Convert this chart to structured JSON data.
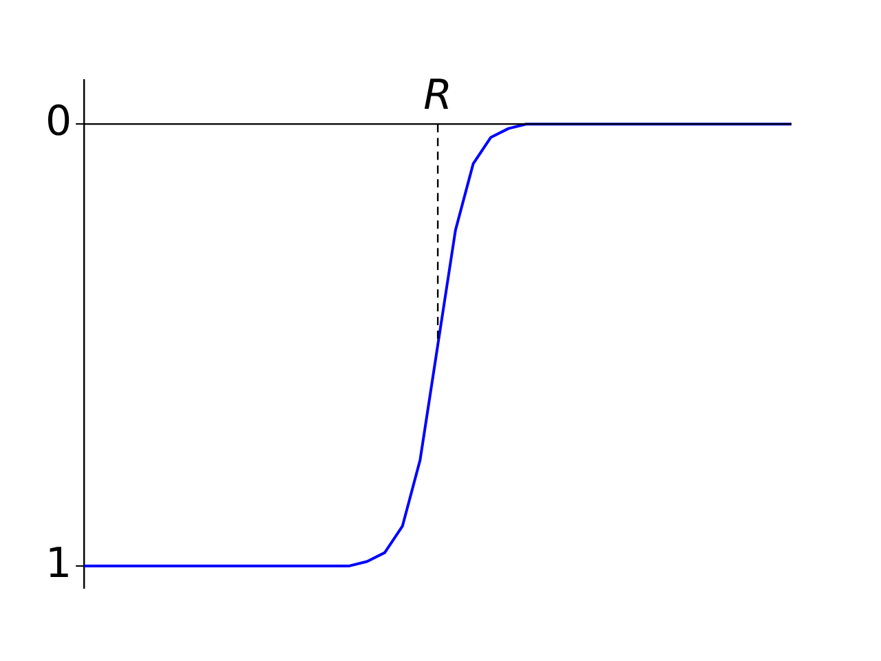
{
  "chart_data": {
    "type": "line",
    "categories": [
      null,
      null,
      null,
      null,
      null,
      null,
      null,
      null,
      null,
      null,
      null,
      null,
      null,
      null,
      null,
      null,
      null,
      null,
      null,
      null,
      null,
      null,
      null,
      null,
      null,
      null,
      null,
      null,
      null,
      null,
      null,
      null,
      null,
      null,
      null,
      null,
      null,
      null,
      null,
      null,
      null
    ],
    "series": [
      {
        "color": "#0000ff",
        "values": [
          1,
          1,
          1,
          1,
          1,
          1,
          1,
          1,
          1,
          1,
          1,
          1,
          1,
          1,
          1,
          1,
          0.99,
          0.97,
          0.91,
          0.76,
          0.5,
          0.24,
          0.09,
          0.03,
          0.01,
          0,
          0,
          0,
          0,
          0,
          0,
          0,
          0,
          0,
          0,
          0,
          0,
          0,
          0,
          0,
          0
        ]
      }
    ],
    "ylim": [
      1.05,
      -0.1
    ],
    "yticks": [
      0,
      1
    ],
    "tick_labels": "y",
    "grid": false,
    "legend": false,
    "marker": "none",
    "line_style": "solid",
    "ref_lines": [
      {
        "axis": "y",
        "value": 0,
        "color": "#000000",
        "line_style": "solid"
      }
    ],
    "annotations": [
      {
        "text": "R",
        "y": 0.5
      }
    ]
  }
}
